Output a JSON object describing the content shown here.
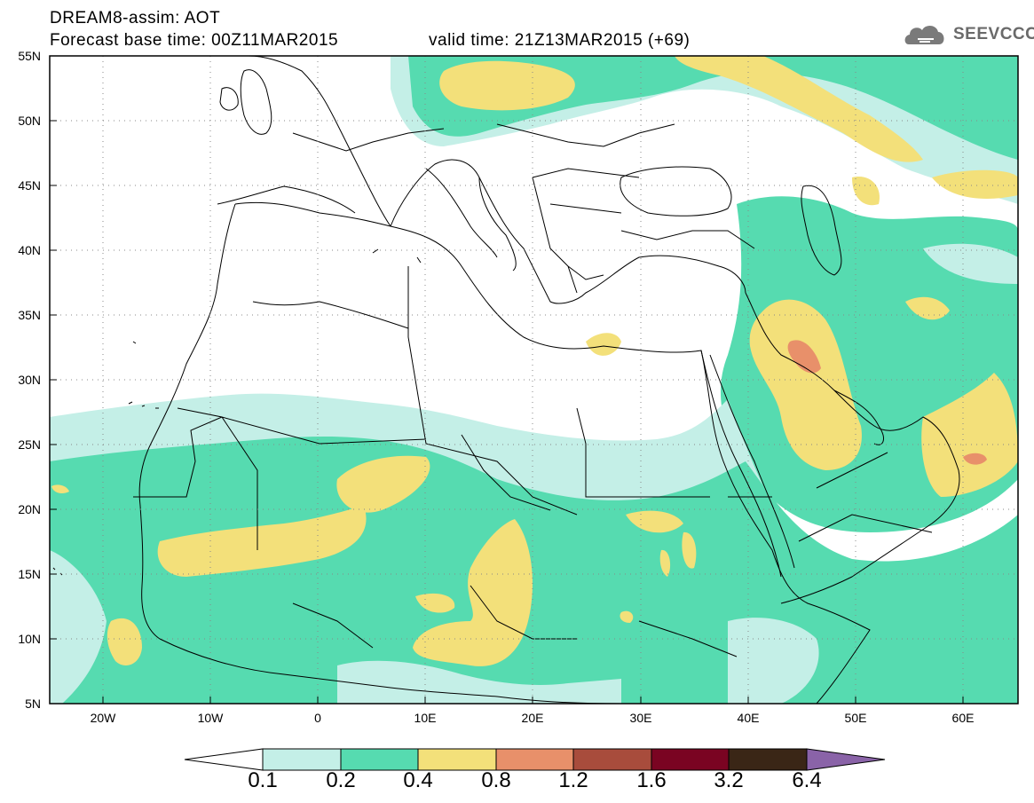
{
  "header": {
    "title_line1": "DREAM8-assim: AOT",
    "base_time": "Forecast base time: 00Z11MAR2015",
    "valid_time": "valid time: 21Z13MAR2015 (+69)",
    "logo_text": "SEEVCCC",
    "logo_icon": "cloud-icon"
  },
  "map": {
    "lat_labels": [
      "55N",
      "50N",
      "45N",
      "40N",
      "35N",
      "30N",
      "25N",
      "20N",
      "15N",
      "10N",
      "5N"
    ],
    "lon_labels": [
      "20W",
      "10W",
      "0",
      "10E",
      "20E",
      "30E",
      "40E",
      "50E",
      "60E"
    ],
    "extent": {
      "lon_min": -25,
      "lon_max": 65,
      "lat_min": 5,
      "lat_max": 55
    }
  },
  "colorbar": {
    "labels": [
      "0.1",
      "0.2",
      "0.4",
      "0.8",
      "1.2",
      "1.6",
      "3.2",
      "6.4"
    ],
    "colors": [
      "#c4efe7",
      "#56dbb0",
      "#f3e07a",
      "#e8906a",
      "#a84c3c",
      "#7a0422",
      "#3a2616",
      "#8a63a8"
    ]
  }
}
